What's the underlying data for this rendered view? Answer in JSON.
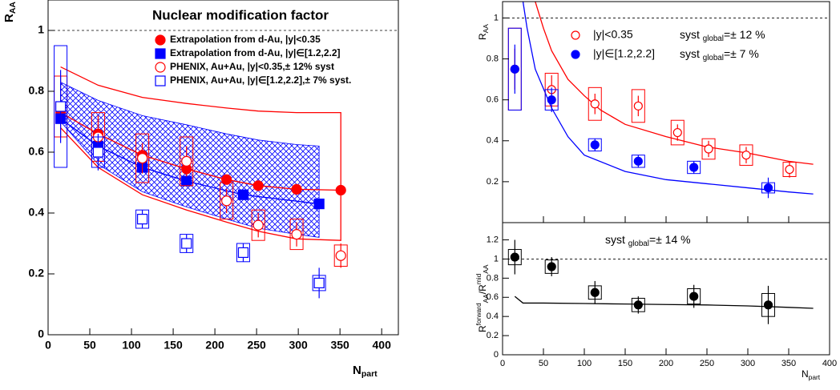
{
  "chart_data": [
    {
      "type": "scatter",
      "title": "Nuclear modification factor",
      "xlabel": [
        {
          "text": "N"
        },
        {
          "text": "part",
          "pos": "sub"
        }
      ],
      "ylabel": [
        {
          "text": "R"
        },
        {
          "text": "AA",
          "pos": "sub"
        }
      ],
      "xlim": [
        0,
        420
      ],
      "ylim": [
        0,
        1.1
      ],
      "xticks": [
        0,
        50,
        100,
        150,
        200,
        250,
        300,
        350,
        400
      ],
      "yticks": [
        0,
        0.2,
        0.4,
        0.6,
        0.8,
        1
      ],
      "reference_line": 1,
      "band": {
        "color": "#0000ff",
        "x": [
          15,
          60,
          113,
          166,
          214,
          252,
          298,
          325
        ],
        "upper": [
          0.83,
          0.77,
          0.72,
          0.69,
          0.66,
          0.64,
          0.625,
          0.62
        ],
        "lower": [
          0.7,
          0.56,
          0.47,
          0.42,
          0.38,
          0.35,
          0.33,
          0.32
        ]
      },
      "lines": [
        {
          "color": "#ff0000",
          "x": [
            15,
            60,
            113,
            166,
            214,
            252,
            298,
            351,
            351,
            298,
            252,
            214,
            166,
            113,
            60,
            15
          ],
          "values": [
            0.88,
            0.82,
            0.78,
            0.76,
            0.745,
            0.735,
            0.73,
            0.73,
            0.31,
            0.315,
            0.34,
            0.37,
            0.41,
            0.46,
            0.55,
            0.68
          ]
        }
      ],
      "series": [
        {
          "name": "Extrapolation from d-Au, |y|<0.35",
          "color": "#ff0000",
          "marker": "circle",
          "filled": true,
          "line": true,
          "x": [
            15,
            60,
            113,
            166,
            214,
            252,
            298,
            351
          ],
          "values": [
            0.73,
            0.66,
            0.59,
            0.545,
            0.51,
            0.49,
            0.478,
            0.475
          ]
        },
        {
          "name": "Extrapolation from d-Au, |y|∈[1.2,2.2]",
          "color": "#0000ff",
          "marker": "square",
          "filled": true,
          "line": true,
          "x": [
            15,
            60,
            113,
            166,
            234,
            325
          ],
          "values": [
            0.71,
            0.62,
            0.55,
            0.505,
            0.46,
            0.43
          ]
        },
        {
          "name": "PHENIX, Au+Au, |y|<0.35,± 12% syst",
          "color": "#ff0000",
          "marker": "circle",
          "filled": false,
          "x": [
            15,
            60,
            113,
            166,
            214,
            252,
            298,
            351
          ],
          "values": [
            0.75,
            0.65,
            0.58,
            0.57,
            0.44,
            0.36,
            0.33,
            0.26
          ],
          "errors": [
            0.1,
            0.07,
            0.05,
            0.05,
            0.04,
            0.04,
            0.04,
            0.04
          ],
          "syst": [
            0.1,
            0.08,
            0.08,
            0.08,
            0.06,
            0.05,
            0.05,
            0.035
          ]
        },
        {
          "name": "PHENIX, Au+Au, |y|∈[1.2,2.2],± 7% syst.",
          "color": "#0000ff",
          "marker": "square",
          "filled": false,
          "x": [
            15,
            60,
            113,
            166,
            234,
            325
          ],
          "values": [
            0.75,
            0.6,
            0.38,
            0.3,
            0.27,
            0.17
          ],
          "errors": [
            0.12,
            0.06,
            0.03,
            0.03,
            0.03,
            0.05
          ],
          "syst": [
            0.2,
            0.05,
            0.03,
            0.03,
            0.03,
            0.025
          ]
        }
      ]
    },
    {
      "type": "scatter",
      "ylabel": [
        {
          "text": "R"
        },
        {
          "text": "AA",
          "pos": "sub"
        }
      ],
      "xlim": [
        0,
        400
      ],
      "ylim": [
        0,
        1.08
      ],
      "xticks": [
        0,
        50,
        100,
        150,
        200,
        250,
        300,
        350,
        400
      ],
      "show_xtick_labels": false,
      "yticks": [
        0.2,
        0.4,
        0.6,
        0.8,
        1
      ],
      "reference_line": 1,
      "lines": [
        {
          "color": "#ff0000",
          "x": [
            40,
            50,
            60,
            80,
            100,
            120,
            150,
            200,
            250,
            300,
            350,
            380
          ],
          "values": [
            1.08,
            0.95,
            0.84,
            0.7,
            0.62,
            0.55,
            0.48,
            0.42,
            0.37,
            0.34,
            0.3,
            0.285
          ]
        },
        {
          "color": "#0000ff",
          "x": [
            25,
            30,
            40,
            60,
            80,
            100,
            150,
            200,
            250,
            300,
            350,
            380
          ],
          "values": [
            1.08,
            0.95,
            0.75,
            0.56,
            0.42,
            0.33,
            0.25,
            0.21,
            0.19,
            0.17,
            0.15,
            0.14
          ]
        }
      ],
      "series": [
        {
          "name": "|y|<0.35",
          "note": [
            {
              "text": "syst "
            },
            {
              "text": "global",
              "pos": "sub"
            },
            {
              "text": "=± 12 %"
            }
          ],
          "color": "#ff0000",
          "marker": "circle",
          "filled": false,
          "x": [
            15,
            60,
            113,
            166,
            214,
            252,
            298,
            351
          ],
          "values": [
            0.75,
            0.65,
            0.58,
            0.57,
            0.44,
            0.36,
            0.33,
            0.26
          ],
          "errors": [
            0.1,
            0.07,
            0.05,
            0.05,
            0.04,
            0.04,
            0.04,
            0.04
          ],
          "syst": [
            0.2,
            0.08,
            0.08,
            0.08,
            0.06,
            0.05,
            0.05,
            0.035
          ]
        },
        {
          "name": "|y|∈[1.2,2.2]",
          "note": [
            {
              "text": "syst "
            },
            {
              "text": "global",
              "pos": "sub"
            },
            {
              "text": "=± 7 %"
            }
          ],
          "color": "#0000ff",
          "marker": "circle",
          "filled": true,
          "x": [
            15,
            60,
            113,
            166,
            234,
            325
          ],
          "values": [
            0.75,
            0.6,
            0.38,
            0.3,
            0.27,
            0.17
          ],
          "errors": [
            0.12,
            0.06,
            0.03,
            0.03,
            0.03,
            0.05
          ],
          "syst": [
            0.2,
            0.05,
            0.03,
            0.03,
            0.03,
            0.025
          ]
        }
      ]
    },
    {
      "type": "scatter",
      "xlabel": [
        {
          "text": "N"
        },
        {
          "text": "part",
          "pos": "sub"
        }
      ],
      "ylabel": [
        {
          "text": "R"
        },
        {
          "text": "forward",
          "pos": "sup"
        },
        {
          "text": "AA",
          "pos": "sub"
        },
        {
          "text": "/R"
        },
        {
          "text": "mid",
          "pos": "sup"
        },
        {
          "text": "AA",
          "pos": "sub"
        }
      ],
      "annotation": [
        {
          "text": "syst "
        },
        {
          "text": "global",
          "pos": "sub"
        },
        {
          "text": "=± 14 %"
        }
      ],
      "xlim": [
        0,
        400
      ],
      "ylim": [
        0,
        1.38
      ],
      "xticks": [
        0,
        50,
        100,
        150,
        200,
        250,
        300,
        350,
        400
      ],
      "yticks": [
        0,
        0.2,
        0.4,
        0.6,
        0.8,
        1,
        1.2
      ],
      "reference_line": 1,
      "lines": [
        {
          "color": "#000000",
          "x": [
            15,
            25,
            50,
            100,
            150,
            200,
            250,
            300,
            350,
            380
          ],
          "values": [
            0.61,
            0.54,
            0.54,
            0.535,
            0.53,
            0.525,
            0.52,
            0.51,
            0.495,
            0.485
          ]
        }
      ],
      "series": [
        {
          "color": "#000000",
          "marker": "circle",
          "filled": true,
          "x": [
            15,
            60,
            113,
            166,
            234,
            325
          ],
          "values": [
            1.02,
            0.92,
            0.65,
            0.52,
            0.61,
            0.52
          ],
          "errors": [
            0.18,
            0.1,
            0.12,
            0.09,
            0.12,
            0.2
          ],
          "syst": [
            0.08,
            0.07,
            0.07,
            0.07,
            0.08,
            0.12
          ]
        }
      ]
    }
  ]
}
